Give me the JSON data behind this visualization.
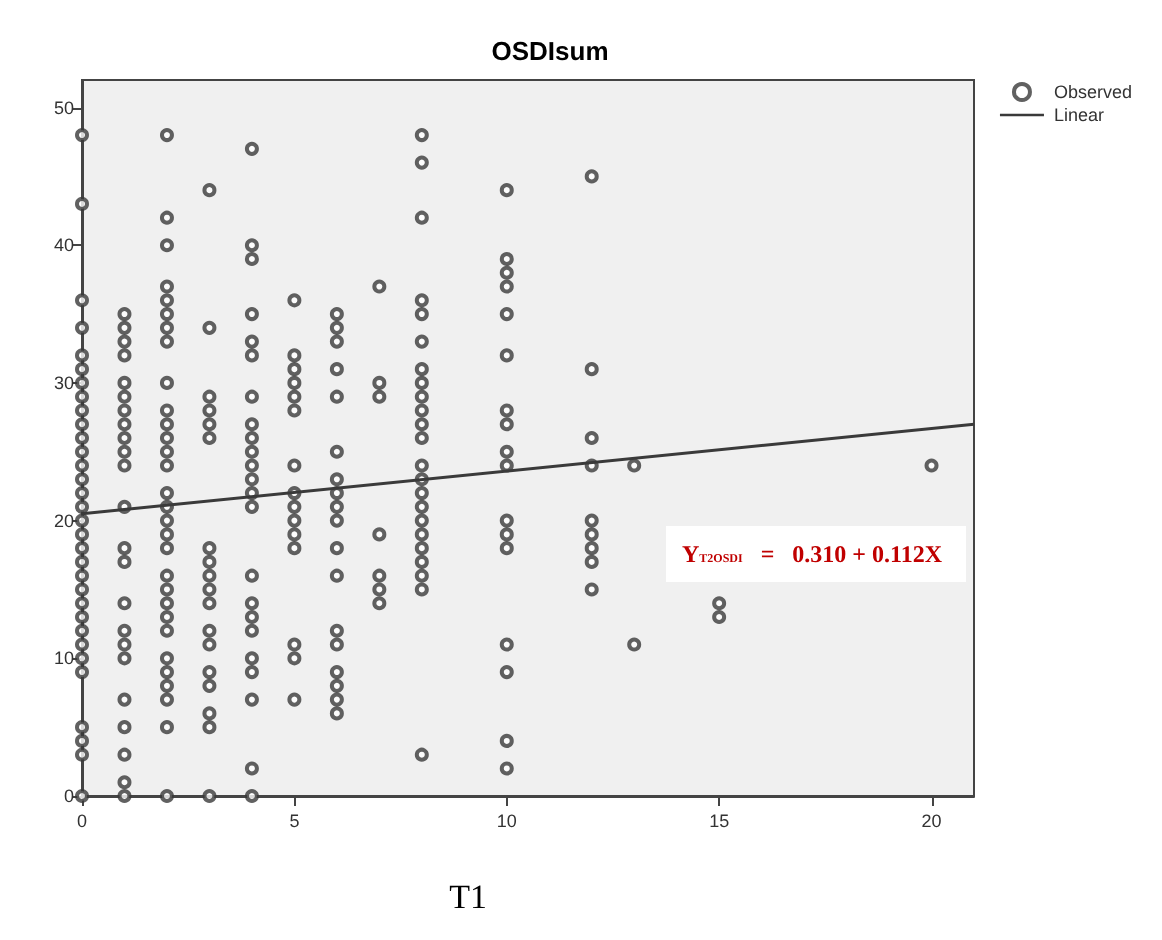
{
  "chart_data": {
    "type": "scatter",
    "title": "OSDIsum",
    "xlabel": "T1",
    "xlim": [
      0,
      21
    ],
    "xticks": [
      0,
      5,
      10,
      15,
      20
    ],
    "ylim": [
      0,
      52
    ],
    "yticks": [
      0,
      10,
      20,
      30,
      40,
      50
    ],
    "grid": false,
    "legend": "top right",
    "annotations": [
      "Y$_{T2OSDI}$   =   0.310 + 0.112X"
    ],
    "series": [
      {
        "name": "Observed",
        "marker": "circle",
        "color": "#3a3a3a",
        "x": [
          0,
          0,
          0,
          0,
          0,
          0,
          0,
          0,
          0,
          0,
          0,
          0,
          0,
          0,
          0,
          0,
          0,
          0,
          0,
          0,
          0,
          0,
          0,
          0,
          0,
          0,
          0,
          0,
          0,
          0,
          0,
          0,
          1,
          1,
          1,
          1,
          1,
          1,
          1,
          1,
          1,
          1,
          1,
          1,
          1,
          1,
          1,
          1,
          1,
          1,
          1,
          1,
          1,
          1,
          1,
          2,
          2,
          2,
          2,
          2,
          2,
          2,
          2,
          2,
          2,
          2,
          2,
          2,
          2,
          2,
          2,
          2,
          2,
          2,
          2,
          2,
          2,
          2,
          2,
          2,
          2,
          2,
          2,
          2,
          2,
          3,
          3,
          3,
          3,
          3,
          3,
          3,
          3,
          3,
          3,
          3,
          3,
          3,
          3,
          3,
          3,
          3,
          3,
          4,
          4,
          4,
          4,
          4,
          4,
          4,
          4,
          4,
          4,
          4,
          4,
          4,
          4,
          4,
          4,
          4,
          4,
          4,
          4,
          4,
          4,
          4,
          5,
          5,
          5,
          5,
          5,
          5,
          5,
          5,
          5,
          5,
          5,
          5,
          5,
          5,
          5,
          6,
          6,
          6,
          6,
          6,
          6,
          6,
          6,
          6,
          6,
          6,
          6,
          6,
          6,
          6,
          6,
          6,
          6,
          7,
          7,
          7,
          7,
          7,
          7,
          7,
          8,
          8,
          8,
          8,
          8,
          8,
          8,
          8,
          8,
          8,
          8,
          8,
          8,
          8,
          8,
          8,
          8,
          8,
          8,
          8,
          8,
          8,
          8,
          10,
          10,
          10,
          10,
          10,
          10,
          10,
          10,
          10,
          10,
          10,
          10,
          10,
          10,
          10,
          10,
          10,
          12,
          12,
          12,
          12,
          12,
          12,
          12,
          12,
          12,
          13,
          13,
          15,
          15,
          20
        ],
        "values": [
          48,
          43,
          36,
          34,
          32,
          31,
          30,
          29,
          28,
          27,
          26,
          25,
          24,
          23,
          22,
          21,
          20,
          19,
          18,
          17,
          16,
          15,
          14,
          13,
          12,
          11,
          10,
          9,
          5,
          4,
          3,
          0,
          35,
          34,
          33,
          32,
          30,
          29,
          28,
          27,
          26,
          25,
          24,
          21,
          18,
          17,
          14,
          12,
          11,
          10,
          7,
          5,
          3,
          1,
          0,
          48,
          42,
          40,
          37,
          36,
          35,
          34,
          33,
          30,
          28,
          27,
          26,
          25,
          24,
          22,
          21,
          20,
          19,
          18,
          16,
          15,
          14,
          13,
          12,
          10,
          9,
          8,
          7,
          5,
          0,
          44,
          34,
          29,
          28,
          27,
          26,
          18,
          17,
          16,
          15,
          14,
          12,
          11,
          9,
          8,
          6,
          5,
          0,
          47,
          40,
          39,
          35,
          33,
          32,
          29,
          27,
          26,
          25,
          24,
          23,
          22,
          21,
          16,
          14,
          13,
          12,
          10,
          9,
          7,
          2,
          0,
          36,
          32,
          31,
          30,
          29,
          28,
          24,
          22,
          21,
          20,
          19,
          18,
          11,
          10,
          7,
          35,
          34,
          33,
          31,
          29,
          25,
          23,
          22,
          21,
          20,
          18,
          16,
          12,
          11,
          9,
          8,
          7,
          6,
          37,
          30,
          29,
          19,
          16,
          15,
          14,
          48,
          46,
          42,
          36,
          35,
          33,
          31,
          30,
          29,
          28,
          27,
          26,
          24,
          23,
          22,
          21,
          20,
          19,
          18,
          17,
          16,
          15,
          3,
          44,
          39,
          38,
          37,
          35,
          32,
          28,
          27,
          25,
          24,
          20,
          19,
          18,
          11,
          9,
          4,
          2,
          45,
          31,
          26,
          24,
          20,
          19,
          18,
          17,
          15,
          24,
          11,
          14,
          13,
          24
        ]
      },
      {
        "name": "Linear",
        "type": "line",
        "marker": "none",
        "line_style": "solid",
        "color": "#3a3a3a",
        "x": [
          0,
          21
        ],
        "values": [
          20.5,
          27
        ]
      }
    ]
  }
}
